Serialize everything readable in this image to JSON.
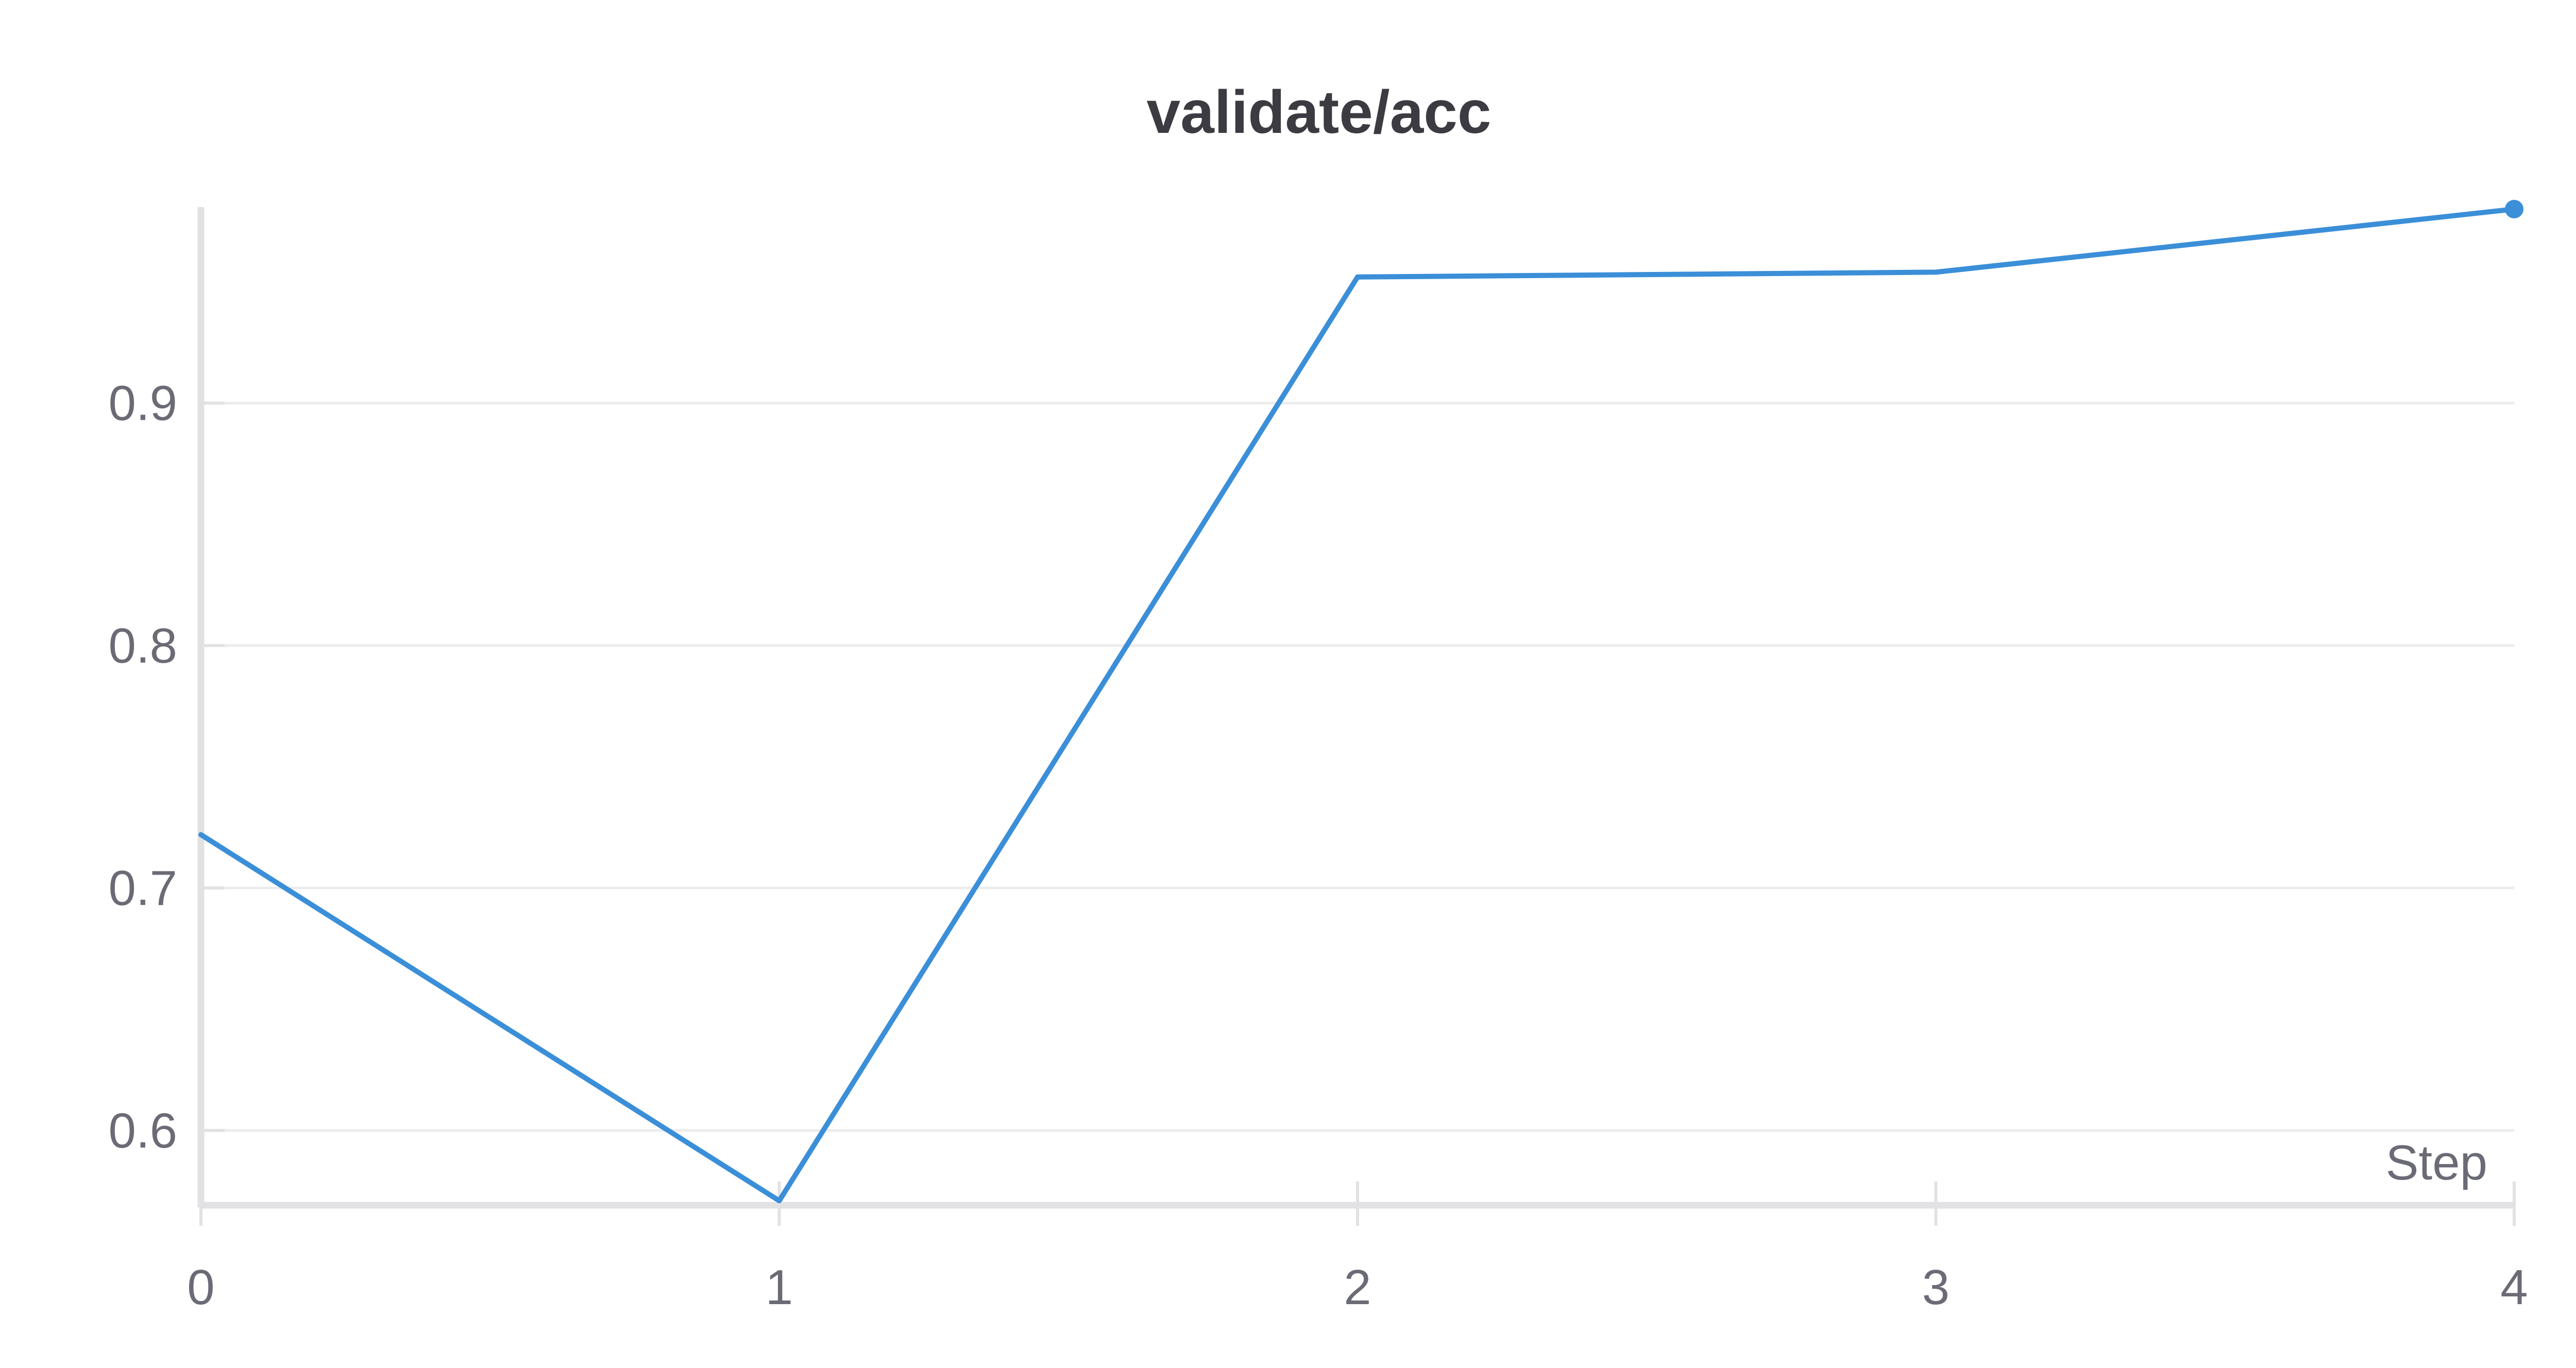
{
  "chart_data": {
    "type": "line",
    "title": "validate/acc",
    "xlabel": "Step",
    "ylabel": "",
    "x": [
      0,
      1,
      2,
      3,
      4
    ],
    "x_ticks": [
      0,
      1,
      2,
      3,
      4
    ],
    "y_ticks": [
      0.6,
      0.7,
      0.8,
      0.9
    ],
    "xlim": [
      0,
      4
    ],
    "ylim": [
      0.57,
      0.98
    ],
    "grid": "horizontal",
    "series": [
      {
        "color": "#3b8fd8",
        "values": [
          0.722,
          0.571,
          0.952,
          0.954,
          0.98
        ]
      }
    ],
    "colors": {
      "line": "#3b8fd8",
      "axis": "#e2e2e4",
      "grid": "#ececee",
      "tick_text": "#6b6b76",
      "title_text": "#3b3b41"
    }
  }
}
